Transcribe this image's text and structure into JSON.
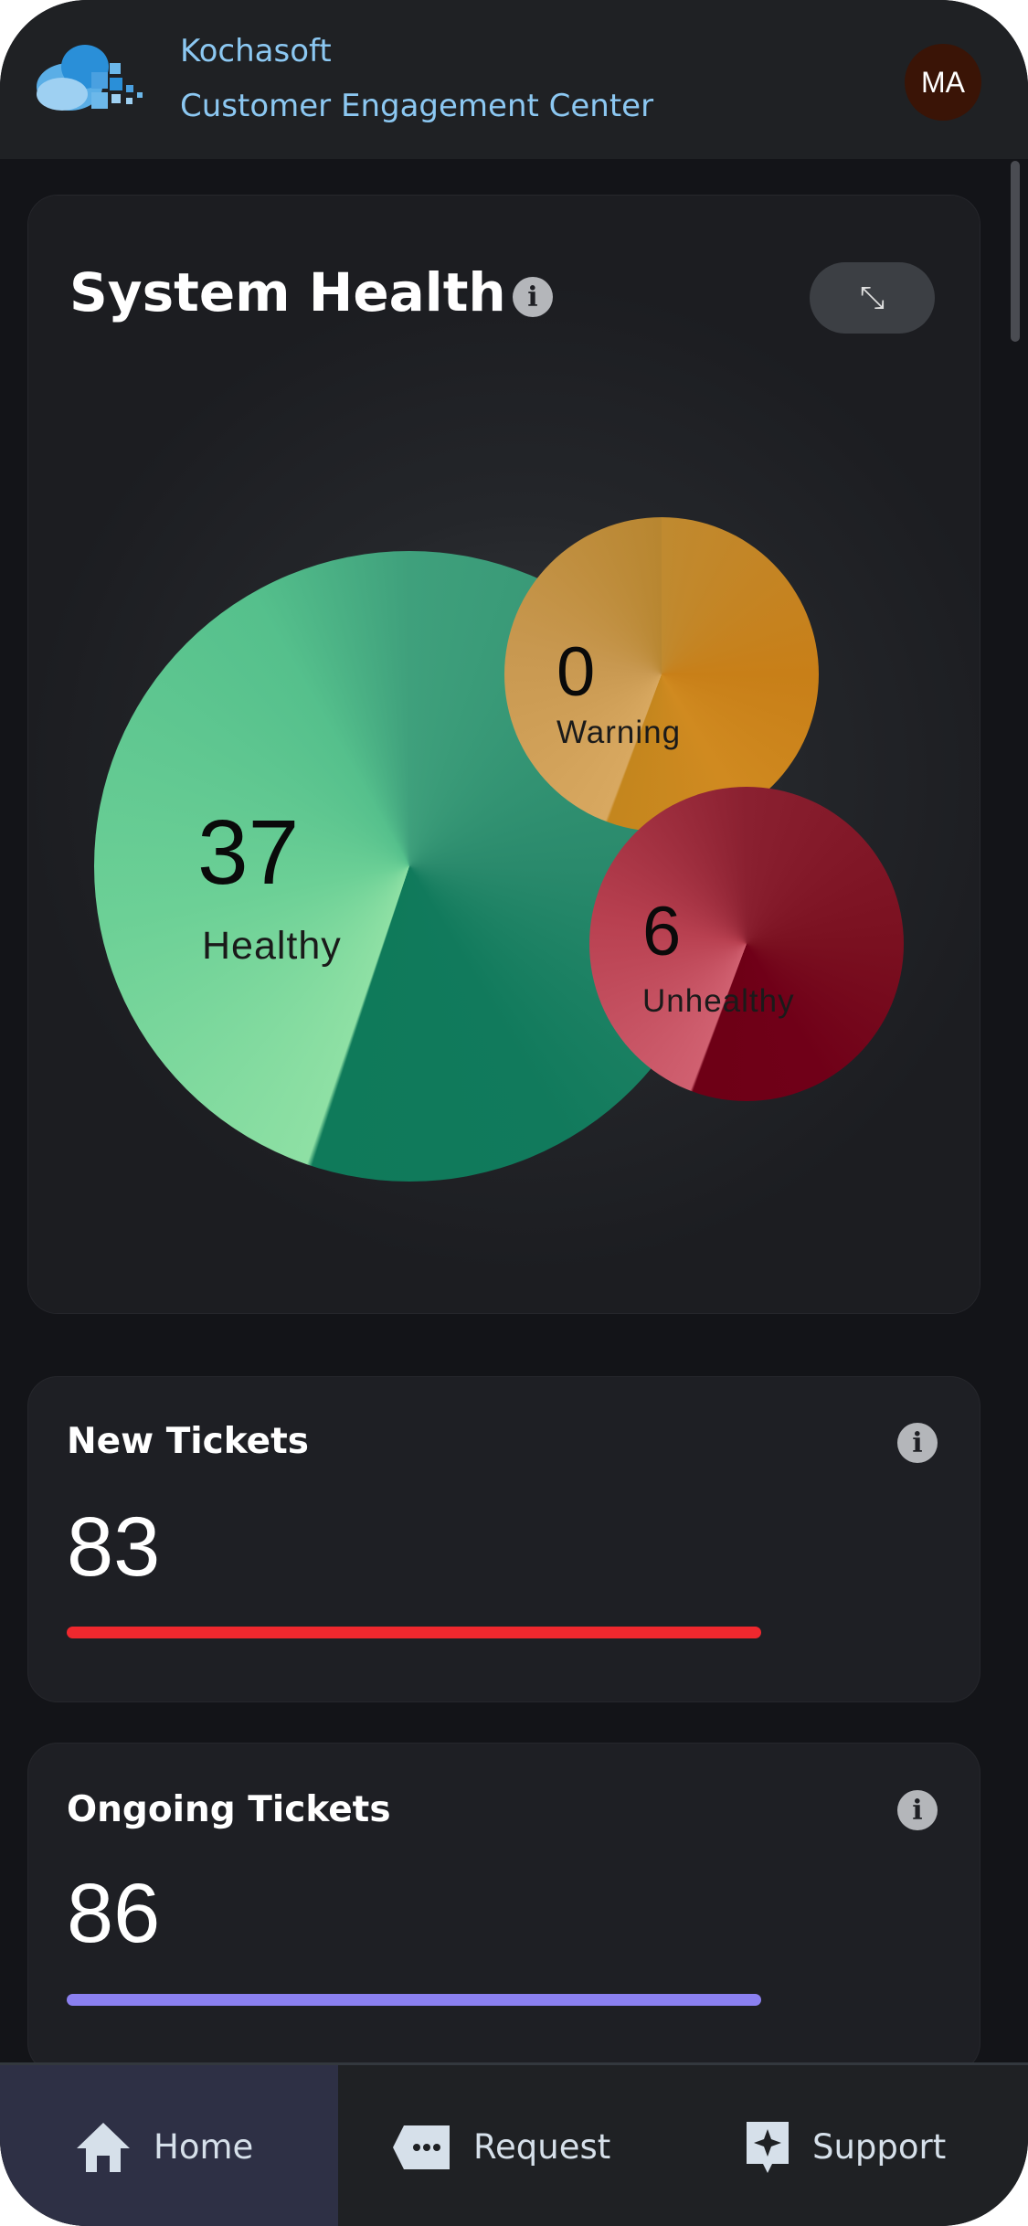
{
  "header": {
    "brand": "Kochasoft",
    "app_name": "Customer Engagement Center",
    "avatar_initials": "MA"
  },
  "system_health": {
    "title": "System Health",
    "info_icon": "info-icon",
    "expand_icon": "expand-icon",
    "bubbles": [
      {
        "label": "Healthy",
        "value": "37",
        "color": "#4fb886"
      },
      {
        "label": "Warning",
        "value": "0",
        "color": "#c8891e"
      },
      {
        "label": "Unhealthy",
        "value": "6",
        "color": "#8a1a2c"
      }
    ]
  },
  "cards": [
    {
      "title": "New Tickets",
      "value": "83",
      "bar_color": "#f0282e",
      "bar_fill": 0.73
    },
    {
      "title": "Ongoing Tickets",
      "value": "86",
      "bar_color": "#8b80f0",
      "bar_fill": 0.73
    }
  ],
  "nav": [
    {
      "label": "Home",
      "icon": "home-icon",
      "active": true
    },
    {
      "label": "Request",
      "icon": "message-tag-icon",
      "active": false
    },
    {
      "label": "Support",
      "icon": "sparkle-badge-icon",
      "active": false
    }
  ]
}
